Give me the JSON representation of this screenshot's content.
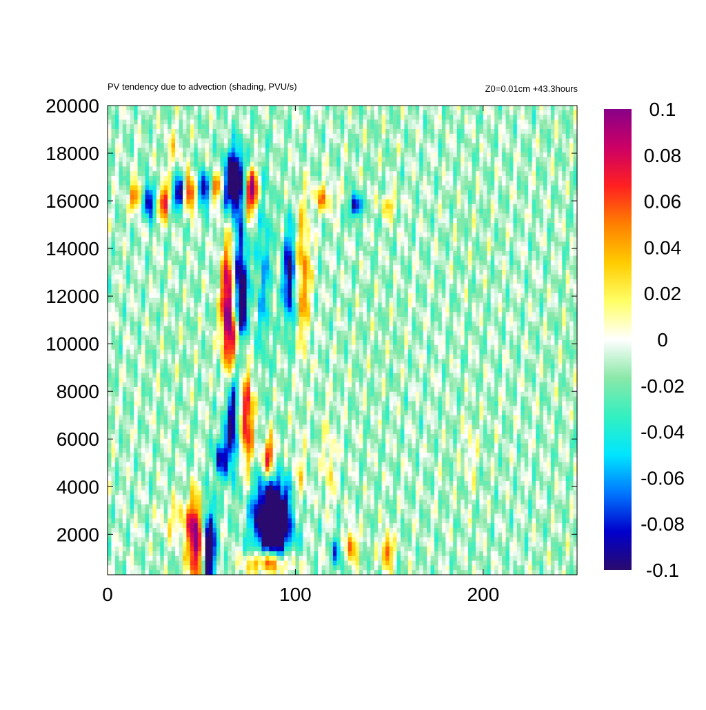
{
  "chart_data": {
    "type": "heatmap",
    "title": "PV tendency due to advection (shading, PVU/s)",
    "subtitle": "Z0=0.01cm   +43.3hours",
    "xlabel": "",
    "ylabel": "",
    "xlim": [
      0,
      250
    ],
    "ylim": [
      300,
      20000
    ],
    "x_ticks": [
      0,
      100,
      200
    ],
    "x_tick_labels": [
      "0",
      "100",
      "200"
    ],
    "y_ticks": [
      2000,
      4000,
      6000,
      8000,
      10000,
      12000,
      14000,
      16000,
      18000,
      20000
    ],
    "y_tick_labels": [
      "2000",
      "4000",
      "6000",
      "8000",
      "10000",
      "12000",
      "14000",
      "16000",
      "18000",
      "20000"
    ],
    "colorbar": {
      "min": -0.1,
      "max": 0.1,
      "ticks": [
        0.1,
        0.08,
        0.06,
        0.04,
        0.02,
        0,
        -0.02,
        -0.04,
        -0.06,
        -0.08,
        -0.1
      ],
      "tick_labels": [
        "0.1",
        "0.08",
        "0.06",
        "0.04",
        "0.02",
        "0",
        "-0.02",
        "-0.04",
        "-0.06",
        "-0.08",
        "-0.1"
      ],
      "colors": [
        "#2a0a6e",
        "#0000cc",
        "#0077ff",
        "#00e6ff",
        "#33f0c0",
        "#8ae8a8",
        "#ffffff",
        "#ffff66",
        "#ffcc00",
        "#ff8000",
        "#ff2020",
        "#cc0066",
        "#880088"
      ]
    },
    "grid": false,
    "features": [
      {
        "x": 68,
        "y": 16800,
        "sx": 4,
        "sy": 900,
        "value": -0.14
      },
      {
        "x": 76,
        "y": 16400,
        "sx": 3,
        "sy": 700,
        "value": 0.12
      },
      {
        "x": 88,
        "y": 2600,
        "sx": 7,
        "sy": 1200,
        "value": -0.16
      },
      {
        "x": 86,
        "y": 800,
        "sx": 8,
        "sy": 350,
        "value": 0.1
      },
      {
        "x": 47,
        "y": 1700,
        "sx": 3,
        "sy": 1200,
        "value": 0.12
      },
      {
        "x": 54,
        "y": 1500,
        "sx": 2.5,
        "sy": 1200,
        "value": -0.12
      },
      {
        "x": 64,
        "y": 11500,
        "sx": 2.5,
        "sy": 1800,
        "value": 0.12
      },
      {
        "x": 71,
        "y": 11800,
        "sx": 2.5,
        "sy": 2200,
        "value": -0.11
      },
      {
        "x": 69,
        "y": 10000,
        "sx": 2.5,
        "sy": 700,
        "value": 0.08
      },
      {
        "x": 74,
        "y": 7000,
        "sx": 2.5,
        "sy": 1500,
        "value": 0.1
      },
      {
        "x": 66,
        "y": 6500,
        "sx": 2.5,
        "sy": 1400,
        "value": -0.09
      },
      {
        "x": 60,
        "y": 5200,
        "sx": 2.5,
        "sy": 600,
        "value": -0.07
      },
      {
        "x": 86,
        "y": 5200,
        "sx": 2.5,
        "sy": 600,
        "value": 0.09
      },
      {
        "x": 97,
        "y": 12800,
        "sx": 2.5,
        "sy": 1500,
        "value": -0.09
      },
      {
        "x": 104,
        "y": 12800,
        "sx": 3,
        "sy": 2000,
        "value": 0.06
      },
      {
        "x": 83,
        "y": 13200,
        "sx": 3,
        "sy": 2800,
        "value": -0.04
      },
      {
        "x": 22,
        "y": 16000,
        "sx": 2,
        "sy": 500,
        "value": -0.1
      },
      {
        "x": 30,
        "y": 16000,
        "sx": 2,
        "sy": 500,
        "value": 0.09
      },
      {
        "x": 38,
        "y": 16300,
        "sx": 2,
        "sy": 500,
        "value": -0.1
      },
      {
        "x": 44,
        "y": 16300,
        "sx": 2,
        "sy": 500,
        "value": 0.1
      },
      {
        "x": 51,
        "y": 16500,
        "sx": 2,
        "sy": 500,
        "value": -0.1
      },
      {
        "x": 58,
        "y": 16600,
        "sx": 2,
        "sy": 400,
        "value": 0.08
      },
      {
        "x": 15,
        "y": 16200,
        "sx": 2,
        "sy": 400,
        "value": 0.08
      },
      {
        "x": 132,
        "y": 15800,
        "sx": 2,
        "sy": 350,
        "value": -0.1
      },
      {
        "x": 115,
        "y": 16100,
        "sx": 4,
        "sy": 400,
        "value": 0.05
      },
      {
        "x": 150,
        "y": 15800,
        "sx": 3,
        "sy": 350,
        "value": 0.04
      },
      {
        "x": 130,
        "y": 1500,
        "sx": 2,
        "sy": 500,
        "value": 0.07
      },
      {
        "x": 149,
        "y": 1300,
        "sx": 2,
        "sy": 500,
        "value": 0.08
      },
      {
        "x": 122,
        "y": 1200,
        "sx": 2,
        "sy": 500,
        "value": -0.05
      },
      {
        "x": 102,
        "y": 4200,
        "sx": 3,
        "sy": 1200,
        "value": 0.03
      },
      {
        "x": 118,
        "y": 5000,
        "sx": 2.5,
        "sy": 1200,
        "value": 0.03
      },
      {
        "x": 193,
        "y": 5500,
        "sx": 2,
        "sy": 900,
        "value": 0.025
      },
      {
        "x": 35,
        "y": 18200,
        "sx": 3,
        "sy": 700,
        "value": 0.025
      },
      {
        "x": 38,
        "y": 2600,
        "sx": 6,
        "sy": 600,
        "value": 0.03
      }
    ]
  }
}
